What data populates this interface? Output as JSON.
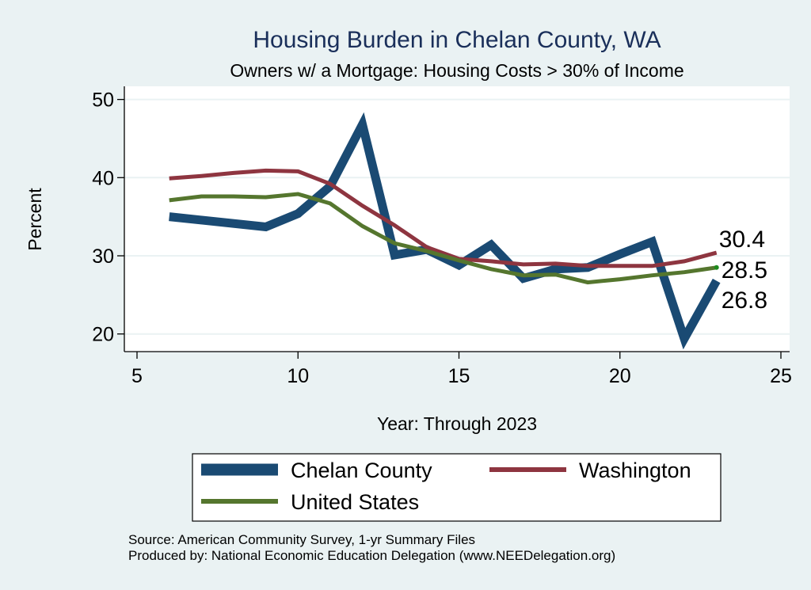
{
  "chart_data": {
    "type": "line",
    "title": "Housing Burden in Chelan County, WA",
    "subtitle": "Owners w/ a Mortgage: Housing Costs > 30% of Income",
    "xlabel": "Year: Through 2023",
    "ylabel": "Percent",
    "xlim": [
      5,
      25
    ],
    "ylim": [
      18,
      52
    ],
    "xticks": [
      5,
      10,
      15,
      20,
      25
    ],
    "yticks": [
      20,
      30,
      40,
      50
    ],
    "grid": true,
    "legend_position": "bottom",
    "series": [
      {
        "name": "Chelan County",
        "color": "#1a4a73",
        "x": [
          6,
          9,
          10,
          11,
          12,
          13,
          14,
          15,
          16,
          17,
          18,
          19,
          20,
          21,
          22,
          23
        ],
        "y": [
          35.0,
          33.7,
          35.4,
          38.9,
          46.8,
          30.1,
          30.8,
          28.8,
          31.4,
          27.1,
          28.3,
          28.5,
          30.2,
          31.8,
          19.4,
          26.8
        ],
        "end_label": "26.8"
      },
      {
        "name": "Washington",
        "color": "#8e3540",
        "x": [
          6,
          7,
          8,
          9,
          10,
          11,
          12,
          13,
          14,
          15,
          16,
          17,
          18,
          19,
          20,
          21,
          22,
          23
        ],
        "y": [
          39.9,
          40.2,
          40.6,
          40.9,
          40.8,
          39.2,
          36.4,
          33.9,
          31.1,
          29.6,
          29.3,
          28.9,
          29.0,
          28.7,
          28.7,
          28.7,
          29.3,
          30.4
        ],
        "end_label": "30.4"
      },
      {
        "name": "United States",
        "color": "#55762e",
        "x": [
          6,
          7,
          8,
          9,
          10,
          11,
          12,
          13,
          14,
          15,
          16,
          17,
          18,
          19,
          20,
          21,
          22,
          23
        ],
        "y": [
          37.1,
          37.6,
          37.6,
          37.5,
          37.9,
          36.7,
          33.8,
          31.6,
          30.6,
          29.4,
          28.3,
          27.5,
          27.6,
          26.6,
          27.0,
          27.5,
          27.9,
          28.5
        ],
        "end_label": "28.5"
      }
    ],
    "notes": [
      "Source: American Community Survey, 1-yr Summary Files",
      "Produced by: National Economic Education Delegation (www.NEEDelegation.org)"
    ]
  }
}
